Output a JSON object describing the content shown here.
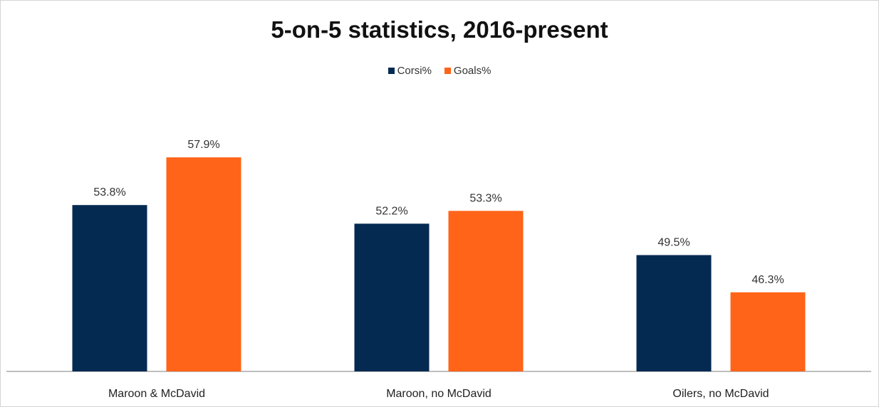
{
  "chart_data": {
    "type": "bar",
    "title": "5-on-5 statistics, 2016-present",
    "categories": [
      "Maroon & McDavid",
      "Maroon, no McDavid",
      "Oilers, no McDavid"
    ],
    "series": [
      {
        "name": "Corsi%",
        "values": [
          53.8,
          52.2,
          49.5
        ],
        "labels": [
          "53.8%",
          "52.2%",
          "49.5%"
        ],
        "color": "#052a51"
      },
      {
        "name": "Goals%",
        "values": [
          57.9,
          53.3,
          46.3
        ],
        "labels": [
          "57.9%",
          "53.3%",
          "46.3%"
        ],
        "color": "#ff6418"
      }
    ],
    "xlabel": "",
    "ylabel": "",
    "ylim": [
      39.5,
      60
    ],
    "grid": false,
    "legend": "top-center"
  }
}
